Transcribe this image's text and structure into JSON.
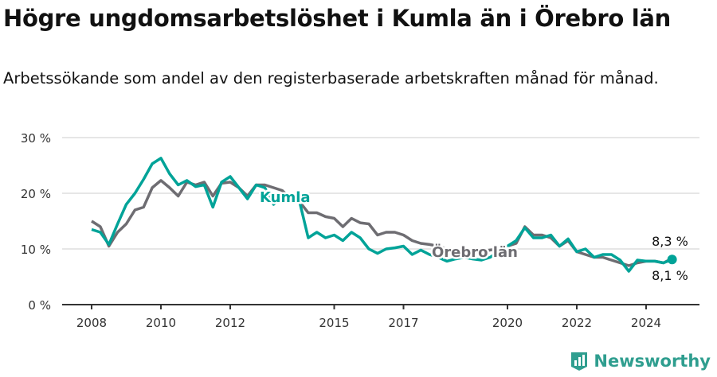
{
  "title": "Högre ungdomsarbetslöshet i Kumla än i Örebro län",
  "subtitle": "Arbetssökande som andel av den registerbaserade arbetskraften månad för månad.",
  "logo_text": "Newsworthy",
  "chart_data": {
    "type": "line",
    "title": "Högre ungdomsarbetslöshet i Kumla än i Örebro län",
    "xlabel": "",
    "ylabel": "",
    "ylim": [
      0,
      30
    ],
    "xlim": [
      2007.15,
      2025.54
    ],
    "yticks": [
      0,
      10,
      20,
      30
    ],
    "ytick_labels": [
      "0 %",
      "10 %",
      "20 %",
      "30 %"
    ],
    "xticks": [
      2008,
      2010,
      2012,
      2015,
      2017,
      2020,
      2022,
      2024
    ],
    "xtick_labels": [
      "2008",
      "2010",
      "2012",
      "2015",
      "2017",
      "2020",
      "2022",
      "2024"
    ],
    "grid": true,
    "x": [
      2008,
      2008.25,
      2008.5,
      2008.75,
      2009,
      2009.25,
      2009.5,
      2009.75,
      2010,
      2010.25,
      2010.5,
      2010.75,
      2011,
      2011.25,
      2011.5,
      2011.75,
      2012,
      2012.25,
      2012.5,
      2012.75,
      2013,
      2013.25,
      2013.5,
      2013.75,
      2014,
      2014.25,
      2014.5,
      2014.75,
      2015,
      2015.25,
      2015.5,
      2015.75,
      2016,
      2016.25,
      2016.5,
      2016.75,
      2017,
      2017.25,
      2017.5,
      2017.75,
      2018,
      2018.25,
      2018.5,
      2018.75,
      2019,
      2019.25,
      2019.5,
      2019.75,
      2020,
      2020.25,
      2020.5,
      2020.75,
      2021,
      2021.25,
      2021.5,
      2021.75,
      2022,
      2022.25,
      2022.5,
      2022.75,
      2023,
      2023.25,
      2023.5,
      2023.75,
      2024,
      2024.25,
      2024.5,
      2024.75
    ],
    "series": [
      {
        "name": "Örebro län",
        "color": "#6e6d72",
        "end_label": "8,3 %",
        "values": [
          15.0,
          14.0,
          10.5,
          13.0,
          14.5,
          17.0,
          17.5,
          21.0,
          22.3,
          21.0,
          19.5,
          22.0,
          21.5,
          22.0,
          19.5,
          21.8,
          22.0,
          21.0,
          19.5,
          21.5,
          21.5,
          21.0,
          20.5,
          19.0,
          18.5,
          16.5,
          16.5,
          15.8,
          15.5,
          14.0,
          15.5,
          14.7,
          14.5,
          12.5,
          13.0,
          13.0,
          12.5,
          11.5,
          11.0,
          10.8,
          10.5,
          10.0,
          9.8,
          9.6,
          9.5,
          9.5,
          9.8,
          10.0,
          10.5,
          11.0,
          14.0,
          12.5,
          12.5,
          12.0,
          10.5,
          11.5,
          9.5,
          9.0,
          8.5,
          8.5,
          8.0,
          7.5,
          7.0,
          7.5,
          7.8,
          7.8,
          7.5,
          8.3
        ]
      },
      {
        "name": "Kumla",
        "color": "#00a398",
        "end_label": "8,1 %",
        "values": [
          13.5,
          13.0,
          10.8,
          14.5,
          18.0,
          20.0,
          22.5,
          25.3,
          26.3,
          23.5,
          21.5,
          22.3,
          21.2,
          21.5,
          17.5,
          22.0,
          23.0,
          21.0,
          19.0,
          21.5,
          21.0,
          18.0,
          19.5,
          19.5,
          18.5,
          12.0,
          13.0,
          12.0,
          12.5,
          11.5,
          13.0,
          12.0,
          10.0,
          9.2,
          10.0,
          10.2,
          10.5,
          9.0,
          9.8,
          9.0,
          8.5,
          7.8,
          8.2,
          8.5,
          8.2,
          8.0,
          8.5,
          9.5,
          10.5,
          11.5,
          13.8,
          12.0,
          12.0,
          12.5,
          10.5,
          11.8,
          9.5,
          10.0,
          8.5,
          9.0,
          9.0,
          8.0,
          6.0,
          8.0,
          7.8,
          7.8,
          7.5,
          8.1
        ]
      }
    ]
  }
}
